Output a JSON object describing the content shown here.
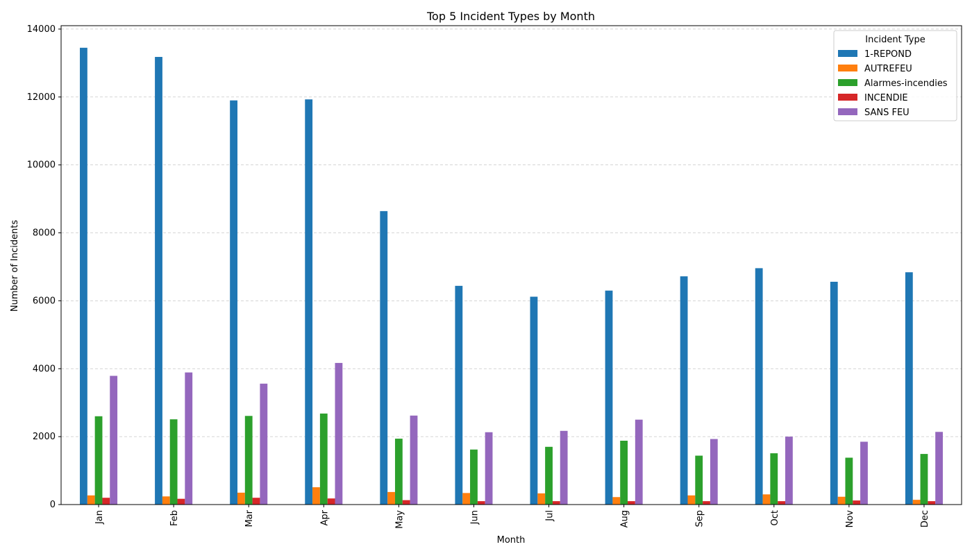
{
  "chart_data": {
    "type": "bar",
    "title": "Top 5 Incident Types by Month",
    "xlabel": "Month",
    "ylabel": "Number of Incidents",
    "categories": [
      "Jan",
      "Feb",
      "Mar",
      "Apr",
      "May",
      "Jun",
      "Jul",
      "Aug",
      "Sep",
      "Oct",
      "Nov",
      "Dec"
    ],
    "ylim": [
      0,
      14100
    ],
    "yticks": [
      0,
      2000,
      4000,
      6000,
      8000,
      10000,
      12000,
      14000
    ],
    "ytick_labels": [
      "0",
      "2000",
      "4000",
      "6000",
      "8000",
      "10000",
      "12000",
      "14000"
    ],
    "grid": "y-dashed",
    "legend": {
      "title": "Incident Type",
      "placement": "top-right"
    },
    "series": [
      {
        "name": "1-REPOND",
        "color": "#1f77b4",
        "values": [
          13450,
          13180,
          11900,
          11930,
          8640,
          6440,
          6120,
          6300,
          6720,
          6960,
          6560,
          6840
        ]
      },
      {
        "name": "AUTREFEU",
        "color": "#ff7f0e",
        "values": [
          270,
          240,
          350,
          510,
          370,
          340,
          330,
          220,
          270,
          300,
          230,
          140
        ]
      },
      {
        "name": "Alarmes-incendies",
        "color": "#2ca02c",
        "values": [
          2600,
          2510,
          2610,
          2680,
          1940,
          1620,
          1700,
          1880,
          1440,
          1510,
          1380,
          1490
        ]
      },
      {
        "name": "INCENDIE",
        "color": "#d62728",
        "values": [
          200,
          170,
          200,
          180,
          130,
          100,
          100,
          100,
          100,
          100,
          120,
          100
        ]
      },
      {
        "name": "SANS FEU",
        "color": "#9467bd",
        "values": [
          3790,
          3890,
          3560,
          4170,
          2620,
          2130,
          2170,
          2500,
          1930,
          2000,
          1850,
          2140
        ]
      }
    ]
  }
}
